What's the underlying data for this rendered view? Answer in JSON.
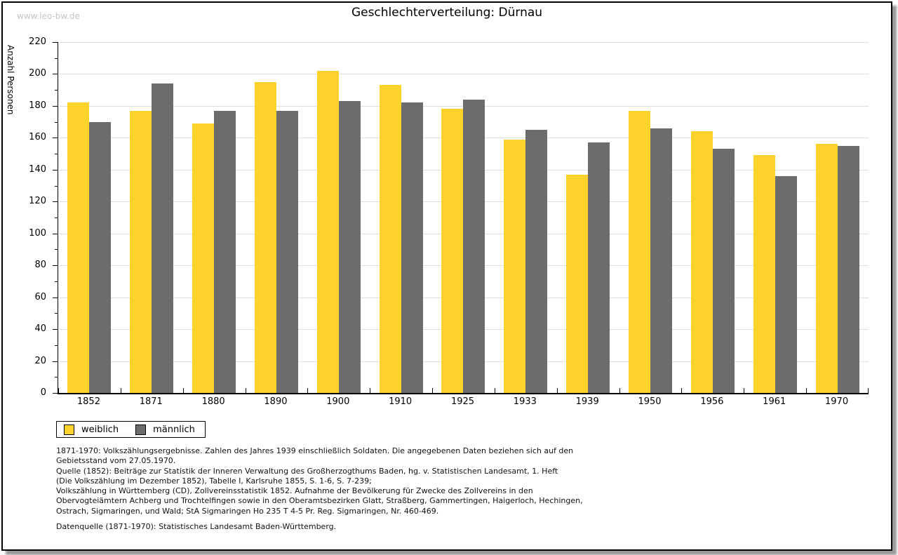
{
  "watermark": "www.leo-bw.de",
  "title": "Geschlechterverteilung: Dürnau",
  "chart_data": {
    "type": "bar",
    "title": "Geschlechterverteilung: Dürnau",
    "xlabel": "",
    "ylabel": "Anzahl Personen",
    "ylim": [
      0,
      220
    ],
    "ytick_step": 20,
    "minor_tick_step": 10,
    "grid": true,
    "legend_position": "bottom-left",
    "categories": [
      "1852",
      "1871",
      "1880",
      "1890",
      "1900",
      "1910",
      "1925",
      "1933",
      "1939",
      "1950",
      "1956",
      "1961",
      "1970"
    ],
    "series": [
      {
        "name": "weiblich",
        "color": "#FCD22B",
        "values": [
          182,
          177,
          169,
          195,
          202,
          193,
          178,
          159,
          137,
          177,
          164,
          149,
          156
        ]
      },
      {
        "name": "männlich",
        "color": "#6C6C6C",
        "values": [
          170,
          194,
          177,
          177,
          183,
          182,
          184,
          165,
          157,
          166,
          153,
          136,
          155
        ]
      }
    ]
  },
  "legend": {
    "items": [
      {
        "label": "weiblich",
        "color": "#FCD22B"
      },
      {
        "label": "männlich",
        "color": "#6C6C6C"
      }
    ]
  },
  "footnotes": {
    "lines": [
      "1871-1970: Volkszählungsergebnisse. Zahlen des Jahres 1939 einschließlich Soldaten. Die angegebenen Daten beziehen sich auf den",
      "Gebietsstand vom 27.05.1970.",
      "Quelle (1852): Beiträge zur Statistik der Inneren Verwaltung des Großherzogthums Baden, hg. v. Statistischen Landesamt, 1. Heft",
      "(Die Volkszählung im Dezember 1852), Tabelle I, Karlsruhe 1855, S. 1-6, S. 7-239;",
      "Volkszählung in Württemberg (CD), Zollvereinsstatistik 1852. Aufnahme der Bevölkerung für Zwecke des Zollvereins in den",
      "Obervogteiämtern Achberg und Trochtelfingen sowie in den Oberamtsbezirken Glatt, Straßberg, Gammertingen, Haigerloch, Hechingen,",
      "Ostrach, Sigmaringen, und Wald; StA Sigmaringen Ho 235 T 4-5 Pr. Reg. Sigmaringen, Nr. 460-469."
    ],
    "datasource": "Datenquelle (1871-1970): Statistisches Landesamt Baden-Württemberg."
  }
}
